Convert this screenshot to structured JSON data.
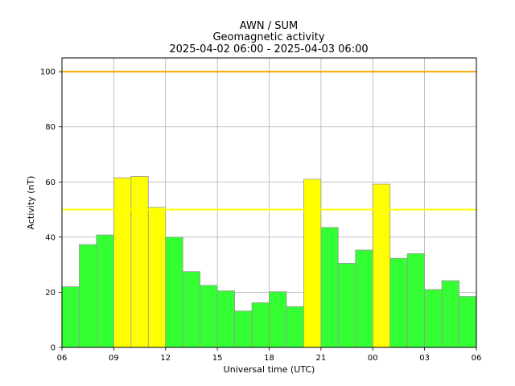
{
  "chart_data": {
    "type": "bar",
    "title_lines": [
      "AWN / SUM",
      "Geomagnetic activity",
      "2025-04-02 06:00 - 2025-04-03 06:00"
    ],
    "xlabel": "Universal time (UTC)",
    "ylabel": "Activity (nT)",
    "x_tick_labels": [
      "06",
      "09",
      "12",
      "15",
      "18",
      "21",
      "00",
      "03",
      "06"
    ],
    "y_ticks": [
      0,
      20,
      40,
      60,
      80,
      100
    ],
    "ylim": [
      0,
      105
    ],
    "xlim": [
      "2025-04-02 06:00",
      "2025-04-03 06:00"
    ],
    "bar_hours": 1,
    "grid": true,
    "categories": [
      "2025-04-02 06:00",
      "2025-04-02 07:00",
      "2025-04-02 08:00",
      "2025-04-02 09:00",
      "2025-04-02 10:00",
      "2025-04-02 11:00",
      "2025-04-02 12:00",
      "2025-04-02 13:00",
      "2025-04-02 14:00",
      "2025-04-02 15:00",
      "2025-04-02 16:00",
      "2025-04-02 17:00",
      "2025-04-02 18:00",
      "2025-04-02 19:00",
      "2025-04-02 20:00",
      "2025-04-02 21:00",
      "2025-04-02 22:00",
      "2025-04-02 23:00",
      "2025-04-03 00:00",
      "2025-04-03 01:00",
      "2025-04-03 02:00",
      "2025-04-03 03:00",
      "2025-04-03 04:00",
      "2025-04-03 05:00"
    ],
    "values": [
      22,
      37.3,
      40.8,
      61.5,
      62,
      50.8,
      40,
      27.5,
      22.5,
      20.5,
      13.2,
      16.2,
      20.2,
      14.8,
      61,
      43.5,
      30.5,
      35.3,
      59.2,
      32.3,
      34,
      21,
      24.2,
      18.5
    ],
    "threshold_lines": [
      {
        "value": 100,
        "color": "#ffa500"
      },
      {
        "value": 50,
        "color": "#ffff00"
      }
    ],
    "colors": {
      "below_threshold": "#33ff33",
      "above_threshold": "#ffff00",
      "edge": "#999999",
      "grid": "#b0b0b0"
    }
  }
}
